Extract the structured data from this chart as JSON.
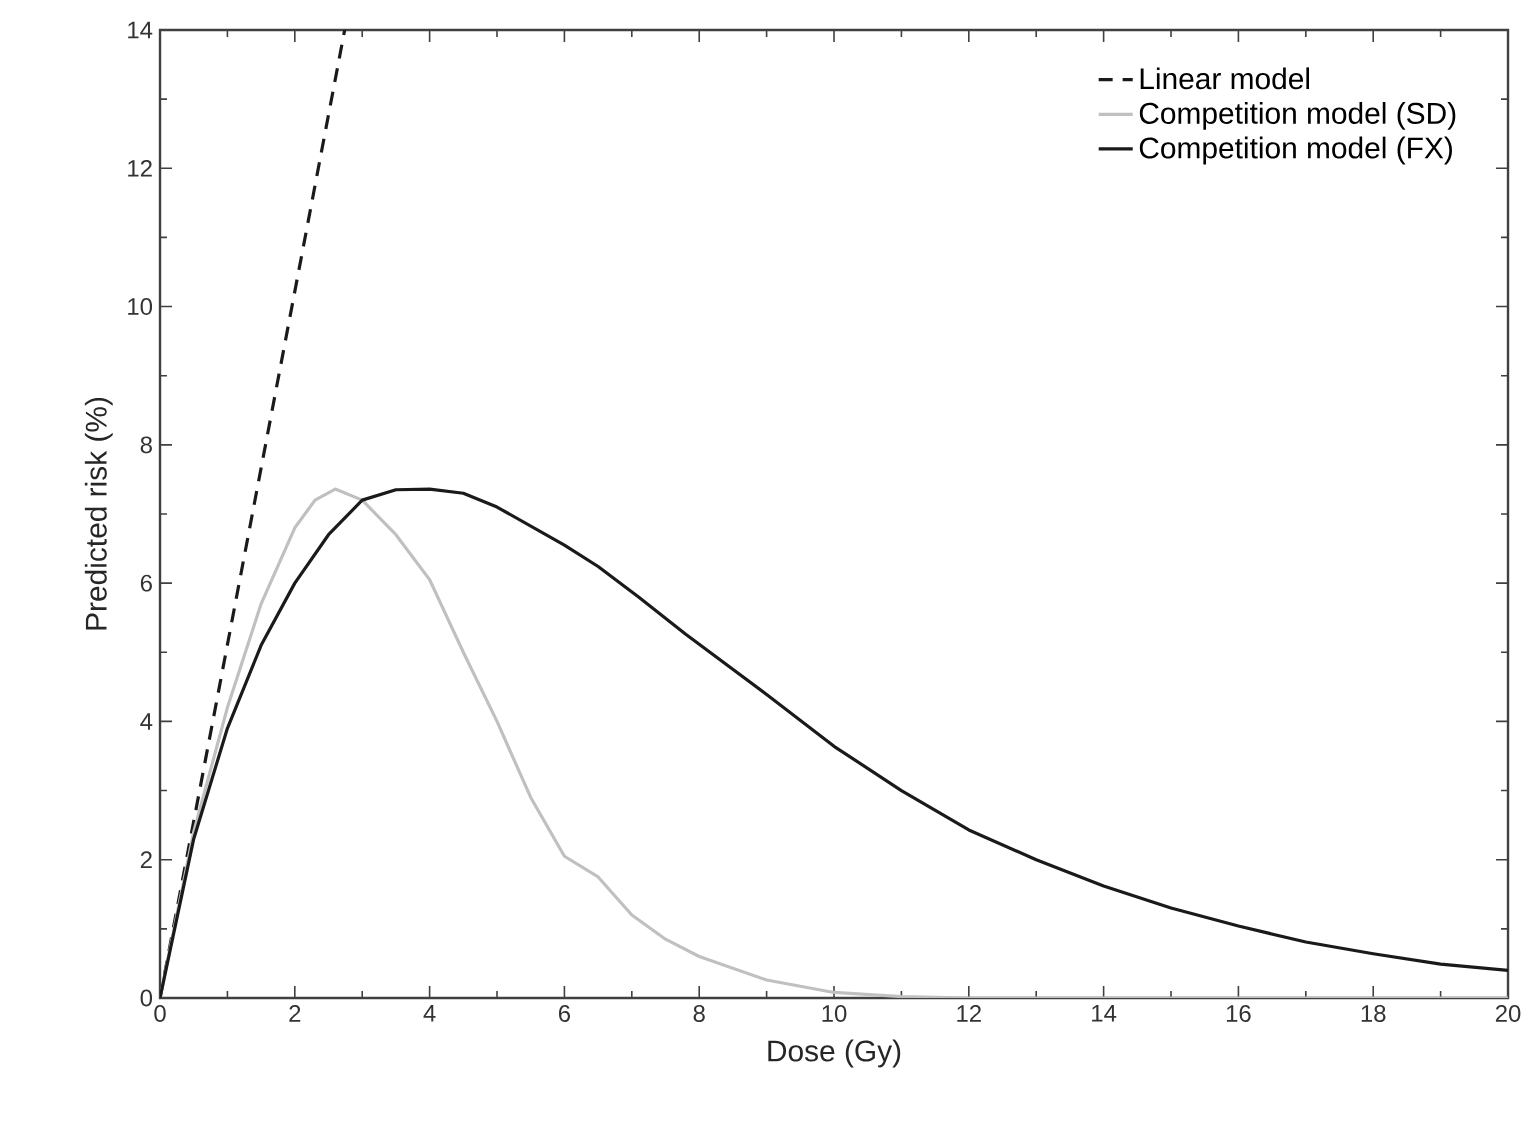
{
  "chart_data": {
    "type": "line",
    "xlabel": "Dose (Gy)",
    "ylabel": "Predicted risk (%)",
    "xlim": [
      0,
      20
    ],
    "ylim": [
      0,
      14
    ],
    "xticks": [
      0,
      2,
      4,
      6,
      8,
      10,
      12,
      14,
      16,
      18,
      20
    ],
    "yticks": [
      0,
      2,
      4,
      6,
      8,
      10,
      12,
      14
    ],
    "legend": "top right",
    "grid": false,
    "marker": "none",
    "series": [
      {
        "name": "Linear model",
        "color": "#1a1a1a",
        "line_style": "dashed",
        "x": [
          0,
          2.74
        ],
        "values": [
          0,
          14
        ]
      },
      {
        "name": "Competition model (SD)",
        "color": "#c0c0c0",
        "line_style": "solid",
        "x": [
          0,
          0.5,
          1,
          1.5,
          2,
          2.3,
          2.6,
          3,
          3.5,
          4,
          4.5,
          5,
          5.5,
          6,
          6.5,
          7,
          7.5,
          8,
          9,
          10,
          11,
          12,
          14,
          16,
          18,
          20
        ],
        "values": [
          0,
          2.4,
          4.2,
          5.7,
          6.8,
          7.2,
          7.36,
          7.2,
          6.7,
          6.05,
          5.0,
          4.0,
          2.9,
          2.05,
          1.75,
          1.2,
          0.85,
          0.6,
          0.26,
          0.08,
          0.02,
          0,
          0,
          0,
          0,
          0
        ]
      },
      {
        "name": "Competition model (FX)",
        "color": "#1a1a1a",
        "line_style": "solid",
        "x": [
          0,
          0.5,
          1,
          1.5,
          2,
          2.5,
          3,
          3.5,
          4,
          4.5,
          5,
          6,
          6.5,
          7.1,
          7.8,
          9,
          10,
          11,
          12,
          13,
          14,
          15,
          16,
          17,
          18,
          19,
          20
        ],
        "values": [
          0,
          2.3,
          3.9,
          5.1,
          6.0,
          6.7,
          7.2,
          7.35,
          7.36,
          7.3,
          7.1,
          6.55,
          6.24,
          5.8,
          5.26,
          4.39,
          3.64,
          3.0,
          2.43,
          2.0,
          1.62,
          1.3,
          1.04,
          0.81,
          0.64,
          0.49,
          0.4
        ]
      }
    ]
  }
}
